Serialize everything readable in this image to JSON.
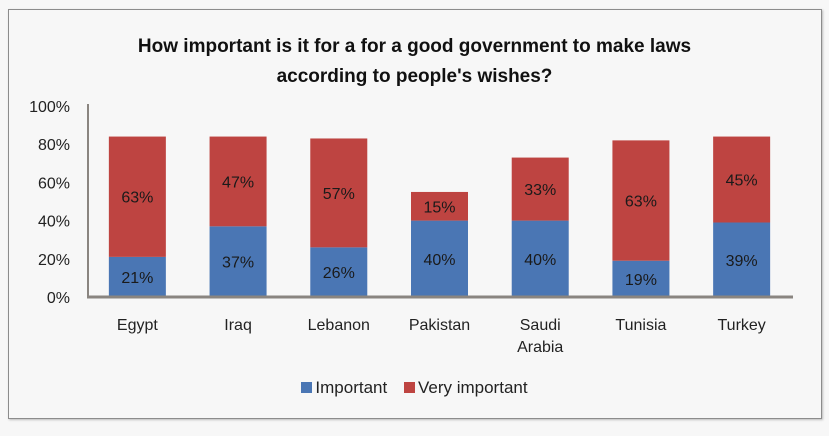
{
  "chart_data": {
    "type": "bar",
    "stacked": true,
    "title": "How important is it for a for a good government to make laws according to people's wishes?",
    "title_lines": [
      "How important is it for a for a good government to make laws",
      "according to people's wishes?"
    ],
    "xlabel": "",
    "ylabel": "",
    "ylim": [
      0,
      100
    ],
    "yticks": [
      "0%",
      "20%",
      "40%",
      "60%",
      "80%",
      "100%"
    ],
    "ytick_values": [
      0,
      20,
      40,
      60,
      80,
      100
    ],
    "grid": false,
    "legend_position": "bottom",
    "categories": [
      "Egypt",
      "Iraq",
      "Lebanon",
      "Pakistan",
      "Saudi Arabia",
      "Tunisia",
      "Turkey"
    ],
    "category_lines": [
      [
        "Egypt"
      ],
      [
        "Iraq"
      ],
      [
        "Lebanon"
      ],
      [
        "Pakistan"
      ],
      [
        "Saudi",
        "Arabia"
      ],
      [
        "Tunisia"
      ],
      [
        "Turkey"
      ]
    ],
    "series": [
      {
        "name": "Important",
        "color": "#4a76b4",
        "values": [
          21,
          37,
          26,
          40,
          40,
          19,
          39
        ],
        "labels": [
          "21%",
          "37%",
          "26%",
          "40%",
          "40%",
          "19%",
          "39%"
        ]
      },
      {
        "name": "Very important",
        "color": "#be4441",
        "values": [
          63,
          47,
          57,
          15,
          33,
          63,
          45
        ],
        "labels": [
          "63%",
          "47%",
          "57%",
          "15%",
          "33%",
          "63%",
          "45%"
        ]
      }
    ]
  },
  "colors": {
    "axis": "#8a8580",
    "background": "#f7f7f7"
  }
}
